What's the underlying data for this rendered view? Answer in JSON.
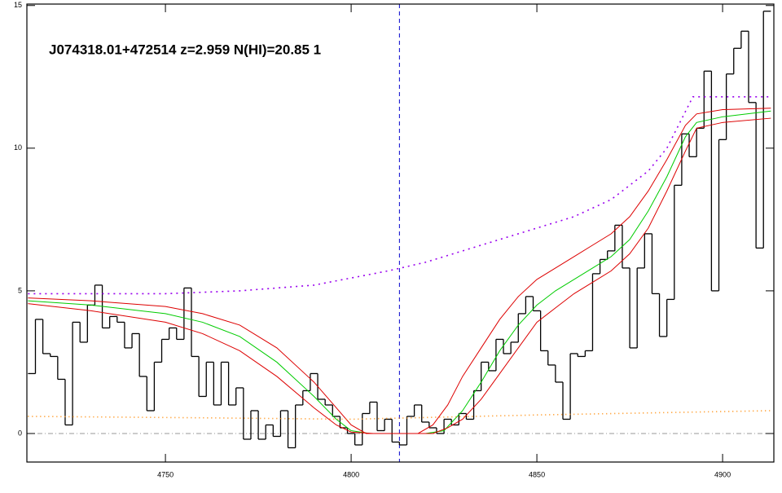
{
  "chart_data": {
    "type": "line",
    "title": "J074318.01+472514 z=2.959 N(HI)=20.85 1",
    "xlim": [
      4712.7,
      4913.8
    ],
    "ylim": [
      -1,
      15.05
    ],
    "xticks": [
      4750,
      4800,
      4850,
      4900
    ],
    "yticks": [
      0,
      5,
      10,
      15
    ],
    "vline": {
      "value": 4813,
      "color": "#0000cc"
    },
    "hline": {
      "value": 0,
      "color": "#999999"
    },
    "series": [
      {
        "style": "step",
        "color": "#000000",
        "x": [
          4714,
          4716,
          4718,
          4720,
          4722,
          4724,
          4726,
          4728,
          4730,
          4732,
          4734,
          4736,
          4738,
          4740,
          4742,
          4744,
          4746,
          4748,
          4750,
          4752,
          4754,
          4756,
          4758,
          4760,
          4762,
          4764,
          4766,
          4768,
          4770,
          4772,
          4774,
          4776,
          4778,
          4780,
          4782,
          4784,
          4786,
          4788,
          4790,
          4792,
          4794,
          4796,
          4798,
          4800,
          4802,
          4804,
          4806,
          4808,
          4810,
          4812,
          4814,
          4816,
          4818,
          4820,
          4822,
          4824,
          4826,
          4828,
          4830,
          4832,
          4834,
          4836,
          4838,
          4840,
          4842,
          4844,
          4846,
          4848,
          4850,
          4852,
          4854,
          4856,
          4858,
          4860,
          4862,
          4864,
          4866,
          4868,
          4870,
          4872,
          4874,
          4876,
          4878,
          4880,
          4882,
          4884,
          4886,
          4888,
          4890,
          4892,
          4894,
          4896,
          4898,
          4900,
          4902,
          4904,
          4906,
          4908,
          4910,
          4912
        ],
        "values": [
          2.1,
          4.0,
          2.8,
          2.7,
          1.9,
          0.3,
          3.9,
          3.2,
          4.5,
          5.2,
          3.7,
          4.1,
          3.9,
          3.0,
          3.5,
          2.0,
          0.8,
          2.5,
          3.3,
          3.7,
          3.3,
          5.1,
          2.7,
          1.3,
          2.5,
          1.0,
          2.5,
          1.0,
          1.6,
          -0.2,
          0.8,
          -0.2,
          0.3,
          -0.1,
          0.8,
          -0.5,
          1.0,
          1.5,
          2.1,
          1.2,
          1.0,
          0.6,
          0.2,
          0.0,
          -0.4,
          0.7,
          1.1,
          0.1,
          0.5,
          -0.3,
          -0.4,
          0.6,
          1.0,
          0.4,
          0.2,
          0.0,
          0.5,
          0.3,
          0.7,
          0.5,
          1.5,
          2.5,
          2.2,
          3.3,
          2.8,
          3.2,
          4.2,
          4.8,
          4.3,
          2.9,
          2.4,
          1.8,
          0.5,
          2.8,
          2.7,
          2.9,
          5.6,
          6.1,
          6.4,
          7.3,
          5.8,
          3.0,
          5.8,
          7.0,
          4.9,
          3.4,
          4.7,
          8.7,
          10.5,
          9.7,
          10.7,
          12.7,
          5.0,
          10.3,
          12.6,
          13.5,
          14.1,
          11.6,
          6.5,
          14.8
        ]
      },
      {
        "style": "solid",
        "color": "#00cc00",
        "x": [
          4713,
          4730,
          4750,
          4760,
          4770,
          4780,
          4790,
          4796,
          4800,
          4805,
          4820,
          4825,
          4830,
          4835,
          4840,
          4845,
          4850,
          4855,
          4860,
          4865,
          4870,
          4875,
          4880,
          4885,
          4890,
          4893,
          4900,
          4913
        ],
        "values": [
          4.65,
          4.5,
          4.2,
          3.9,
          3.4,
          2.5,
          1.3,
          0.5,
          0.1,
          0,
          0,
          0.1,
          0.8,
          1.8,
          2.9,
          3.8,
          4.5,
          5.0,
          5.4,
          5.8,
          6.2,
          6.8,
          7.8,
          9.0,
          10.4,
          10.9,
          11.1,
          11.3
        ]
      },
      {
        "style": "solid",
        "color": "#dd0000",
        "x": [
          4713,
          4730,
          4750,
          4760,
          4770,
          4780,
          4790,
          4796,
          4800,
          4804,
          4818,
          4822,
          4826,
          4830,
          4835,
          4840,
          4845,
          4850,
          4855,
          4860,
          4865,
          4870,
          4875,
          4880,
          4885,
          4890,
          4893,
          4900,
          4913
        ],
        "values": [
          4.75,
          4.65,
          4.45,
          4.2,
          3.8,
          3.0,
          1.8,
          0.9,
          0.3,
          0,
          0,
          0.3,
          1.0,
          2.0,
          3.0,
          4.0,
          4.8,
          5.4,
          5.8,
          6.2,
          6.6,
          7.0,
          7.6,
          8.5,
          9.6,
          10.8,
          11.2,
          11.35,
          11.4
        ]
      },
      {
        "style": "solid",
        "color": "#dd0000",
        "x": [
          4713,
          4730,
          4750,
          4760,
          4770,
          4780,
          4790,
          4796,
          4800,
          4806,
          4822,
          4826,
          4830,
          4835,
          4840,
          4845,
          4850,
          4855,
          4860,
          4865,
          4870,
          4875,
          4880,
          4885,
          4890,
          4893,
          4900,
          4913
        ],
        "values": [
          4.55,
          4.3,
          3.9,
          3.5,
          2.9,
          2.0,
          0.9,
          0.3,
          0.05,
          0,
          0,
          0.2,
          0.5,
          1.2,
          2.1,
          3.0,
          3.9,
          4.4,
          4.9,
          5.3,
          5.7,
          6.3,
          7.2,
          8.5,
          9.9,
          10.7,
          10.9,
          11.05
        ]
      },
      {
        "style": "dotted",
        "color": "#9900ee",
        "x": [
          4713,
          4750,
          4770,
          4790,
          4800,
          4810,
          4820,
          4830,
          4840,
          4850,
          4860,
          4870,
          4880,
          4885,
          4892,
          4913
        ],
        "values": [
          4.9,
          4.9,
          5.0,
          5.2,
          5.45,
          5.7,
          6.0,
          6.4,
          6.8,
          7.2,
          7.6,
          8.2,
          9.2,
          10.0,
          11.8,
          11.8
        ]
      },
      {
        "style": "fine-dotted",
        "color": "#ff8800",
        "x": [
          4713,
          4760,
          4800,
          4850,
          4913
        ],
        "values": [
          0.6,
          0.55,
          0.5,
          0.65,
          0.8
        ]
      }
    ]
  }
}
